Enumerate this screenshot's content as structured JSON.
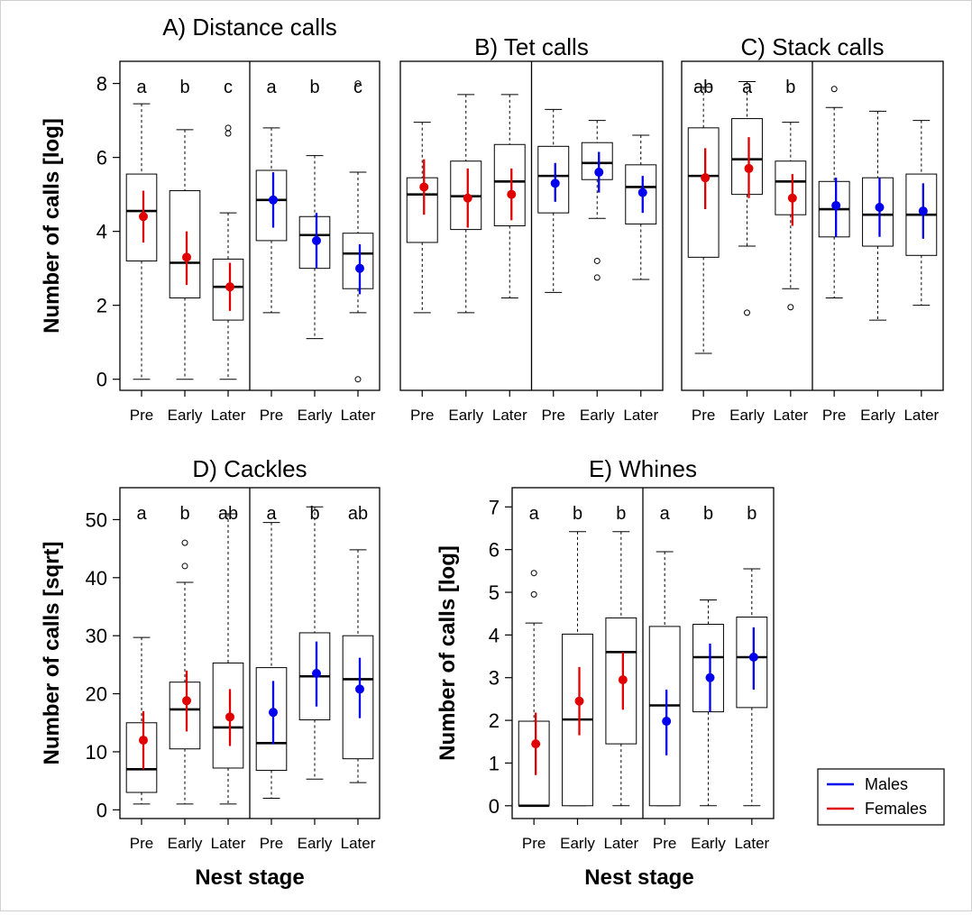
{
  "figure": {
    "xlabel": "Nest stage",
    "legend": {
      "position": "bottom-right"
    }
  },
  "colors": {
    "male": "#0000ee",
    "female": "#e00000",
    "axis": "#000000",
    "whisker": "#000000"
  },
  "chart_data": [
    {
      "id": "A",
      "type": "box",
      "title": "A) Distance calls",
      "ylabel": "Number of calls [log]",
      "ylim": [
        -0.3,
        8.6
      ],
      "yticks": [
        0,
        2,
        4,
        6,
        8
      ],
      "categories": [
        "Pre",
        "Early",
        "Later",
        "Pre",
        "Early",
        "Later"
      ],
      "groups": [
        {
          "stage": "Pre",
          "sex": "female",
          "whislo": 0,
          "q1": 3.2,
          "med": 4.55,
          "q3": 5.55,
          "whishi": 7.45,
          "mean": 4.4,
          "ci": [
            3.7,
            5.1
          ],
          "outliers": [],
          "letter": "a"
        },
        {
          "stage": "Early",
          "sex": "female",
          "whislo": 0,
          "q1": 2.2,
          "med": 3.15,
          "q3": 5.1,
          "whishi": 6.75,
          "mean": 3.3,
          "ci": [
            2.55,
            4.0
          ],
          "outliers": [],
          "letter": "b"
        },
        {
          "stage": "Later",
          "sex": "female",
          "whislo": 0,
          "q1": 1.6,
          "med": 2.5,
          "q3": 3.25,
          "whishi": 4.5,
          "mean": 2.5,
          "ci": [
            1.85,
            3.15
          ],
          "outliers": [
            6.65,
            6.8
          ],
          "letter": "c"
        },
        {
          "stage": "Pre",
          "sex": "male",
          "whislo": 1.8,
          "q1": 3.75,
          "med": 4.85,
          "q3": 5.65,
          "whishi": 6.8,
          "mean": 4.85,
          "ci": [
            4.1,
            5.6
          ],
          "outliers": [],
          "letter": "a"
        },
        {
          "stage": "Early",
          "sex": "male",
          "whislo": 1.1,
          "q1": 3.0,
          "med": 3.9,
          "q3": 4.4,
          "whishi": 6.05,
          "mean": 3.75,
          "ci": [
            3.0,
            4.5
          ],
          "outliers": [],
          "letter": "b"
        },
        {
          "stage": "Later",
          "sex": "male",
          "whislo": 1.8,
          "q1": 2.45,
          "med": 3.4,
          "q3": 3.95,
          "whishi": 5.6,
          "mean": 3.0,
          "ci": [
            2.3,
            3.65
          ],
          "outliers": [
            0,
            8.0
          ],
          "letter": "c"
        }
      ]
    },
    {
      "id": "B",
      "type": "box",
      "title": "B) Tet calls",
      "ylim": [
        -0.3,
        8.6
      ],
      "categories": [
        "Pre",
        "Early",
        "Later",
        "Pre",
        "Early",
        "Later"
      ],
      "groups": [
        {
          "stage": "Pre",
          "sex": "female",
          "whislo": 1.8,
          "q1": 3.7,
          "med": 5.0,
          "q3": 5.45,
          "whishi": 6.95,
          "mean": 5.2,
          "ci": [
            4.45,
            5.95
          ],
          "outliers": []
        },
        {
          "stage": "Early",
          "sex": "female",
          "whislo": 1.8,
          "q1": 4.05,
          "med": 4.95,
          "q3": 5.9,
          "whishi": 7.7,
          "mean": 4.9,
          "ci": [
            4.1,
            5.7
          ],
          "outliers": []
        },
        {
          "stage": "Later",
          "sex": "female",
          "whislo": 2.2,
          "q1": 4.15,
          "med": 5.35,
          "q3": 6.35,
          "whishi": 7.7,
          "mean": 5.0,
          "ci": [
            4.3,
            5.7
          ],
          "outliers": []
        },
        {
          "stage": "Pre",
          "sex": "male",
          "whislo": 2.35,
          "q1": 4.5,
          "med": 5.5,
          "q3": 6.3,
          "whishi": 7.3,
          "mean": 5.3,
          "ci": [
            4.8,
            5.85
          ],
          "outliers": []
        },
        {
          "stage": "Early",
          "sex": "male",
          "whislo": 4.35,
          "q1": 5.4,
          "med": 5.85,
          "q3": 6.4,
          "whishi": 7.0,
          "mean": 5.6,
          "ci": [
            5.05,
            6.15
          ],
          "outliers": [
            2.75,
            3.2
          ]
        },
        {
          "stage": "Later",
          "sex": "male",
          "whislo": 2.7,
          "q1": 4.2,
          "med": 5.2,
          "q3": 5.8,
          "whishi": 6.6,
          "mean": 5.05,
          "ci": [
            4.5,
            5.5
          ],
          "outliers": []
        }
      ]
    },
    {
      "id": "C",
      "type": "box",
      "title": "C) Stack calls",
      "ylim": [
        -0.3,
        8.6
      ],
      "categories": [
        "Pre",
        "Early",
        "Later",
        "Pre",
        "Early",
        "Later"
      ],
      "groups": [
        {
          "stage": "Pre",
          "sex": "female",
          "whislo": 0.7,
          "q1": 3.3,
          "med": 5.5,
          "q3": 6.8,
          "whishi": 7.9,
          "mean": 5.45,
          "ci": [
            4.6,
            6.25
          ],
          "outliers": [],
          "letter": "ab"
        },
        {
          "stage": "Early",
          "sex": "female",
          "whislo": 3.6,
          "q1": 5.0,
          "med": 5.95,
          "q3": 7.05,
          "whishi": 8.05,
          "mean": 5.7,
          "ci": [
            4.9,
            6.55
          ],
          "outliers": [
            1.8
          ],
          "letter": "a"
        },
        {
          "stage": "Later",
          "sex": "female",
          "whislo": 2.45,
          "q1": 4.45,
          "med": 5.35,
          "q3": 5.9,
          "whishi": 6.95,
          "mean": 4.9,
          "ci": [
            4.15,
            5.55
          ],
          "outliers": [
            1.95
          ],
          "letter": "b"
        },
        {
          "stage": "Pre",
          "sex": "male",
          "whislo": 2.2,
          "q1": 3.85,
          "med": 4.6,
          "q3": 5.35,
          "whishi": 7.35,
          "mean": 4.7,
          "ci": [
            3.85,
            5.45
          ],
          "outliers": [
            7.85
          ]
        },
        {
          "stage": "Early",
          "sex": "male",
          "whislo": 1.6,
          "q1": 3.6,
          "med": 4.45,
          "q3": 5.45,
          "whishi": 7.25,
          "mean": 4.65,
          "ci": [
            3.85,
            5.45
          ],
          "outliers": []
        },
        {
          "stage": "Later",
          "sex": "male",
          "whislo": 2.0,
          "q1": 3.35,
          "med": 4.45,
          "q3": 5.55,
          "whishi": 7.0,
          "mean": 4.55,
          "ci": [
            3.8,
            5.3
          ],
          "outliers": []
        }
      ]
    },
    {
      "id": "D",
      "type": "box",
      "title": "D) Cackles",
      "ylabel": "Number of calls [sqrt]",
      "ylim": [
        -1.5,
        55.5
      ],
      "yticks": [
        0,
        10,
        20,
        30,
        40,
        50
      ],
      "categories": [
        "Pre",
        "Early",
        "Later",
        "Pre",
        "Early",
        "Later"
      ],
      "groups": [
        {
          "stage": "Pre",
          "sex": "female",
          "whislo": 1,
          "q1": 3,
          "med": 7,
          "q3": 15,
          "whishi": 29.7,
          "mean": 12,
          "ci": [
            7,
            17
          ],
          "outliers": [],
          "letter": "a"
        },
        {
          "stage": "Early",
          "sex": "female",
          "whislo": 1,
          "q1": 10.5,
          "med": 17.3,
          "q3": 22,
          "whishi": 39.2,
          "mean": 18.8,
          "ci": [
            13.5,
            24
          ],
          "outliers": [
            42,
            46
          ],
          "letter": "b"
        },
        {
          "stage": "Later",
          "sex": "female",
          "whislo": 1,
          "q1": 7.2,
          "med": 14.2,
          "q3": 25.3,
          "whishi": 51,
          "mean": 16,
          "ci": [
            11,
            20.8
          ],
          "outliers": [],
          "letter": "ab"
        },
        {
          "stage": "Pre",
          "sex": "male",
          "whislo": 2,
          "q1": 6.8,
          "med": 11.5,
          "q3": 24.5,
          "whishi": 49.5,
          "mean": 16.8,
          "ci": [
            11.3,
            22.2
          ],
          "outliers": [],
          "letter": "a"
        },
        {
          "stage": "Early",
          "sex": "male",
          "whislo": 5.3,
          "q1": 15.5,
          "med": 23,
          "q3": 30.5,
          "whishi": 52.2,
          "mean": 23.5,
          "ci": [
            17.8,
            29
          ],
          "outliers": [],
          "letter": "b"
        },
        {
          "stage": "Later",
          "sex": "male",
          "whislo": 4.7,
          "q1": 8.8,
          "med": 22.5,
          "q3": 30,
          "whishi": 44.8,
          "mean": 20.8,
          "ci": [
            15.8,
            26.2
          ],
          "outliers": [],
          "letter": "ab"
        }
      ]
    },
    {
      "id": "E",
      "type": "box",
      "title": "E) Whines",
      "ylabel": "Number of calls [log]",
      "ylim": [
        -0.3,
        7.45
      ],
      "yticks": [
        0,
        1,
        2,
        3,
        4,
        5,
        6,
        7
      ],
      "categories": [
        "Pre",
        "Early",
        "Later",
        "Pre",
        "Early",
        "Later"
      ],
      "groups": [
        {
          "stage": "Pre",
          "sex": "female",
          "whislo": 0,
          "q1": 0,
          "med": 0,
          "q3": 1.98,
          "whishi": 4.28,
          "mean": 1.45,
          "ci": [
            0.72,
            2.18
          ],
          "outliers": [
            4.95,
            5.45
          ],
          "letter": "a"
        },
        {
          "stage": "Early",
          "sex": "female",
          "whislo": 0,
          "q1": 0,
          "med": 2.02,
          "q3": 4.02,
          "whishi": 6.42,
          "mean": 2.45,
          "ci": [
            1.65,
            3.25
          ],
          "outliers": [],
          "letter": "b"
        },
        {
          "stage": "Later",
          "sex": "female",
          "whislo": 0,
          "q1": 1.45,
          "med": 3.6,
          "q3": 4.4,
          "whishi": 6.42,
          "mean": 2.95,
          "ci": [
            2.25,
            3.6
          ],
          "outliers": [],
          "letter": "b"
        },
        {
          "stage": "Pre",
          "sex": "male",
          "whislo": 0,
          "q1": 0,
          "med": 2.35,
          "q3": 4.2,
          "whishi": 5.95,
          "mean": 1.98,
          "ci": [
            1.18,
            2.72
          ],
          "outliers": [],
          "letter": "a"
        },
        {
          "stage": "Early",
          "sex": "male",
          "whislo": 0,
          "q1": 2.2,
          "med": 3.48,
          "q3": 4.25,
          "whishi": 4.82,
          "mean": 3.0,
          "ci": [
            2.2,
            3.8
          ],
          "outliers": [],
          "letter": "b"
        },
        {
          "stage": "Later",
          "sex": "male",
          "whislo": 0,
          "q1": 2.3,
          "med": 3.48,
          "q3": 4.42,
          "whishi": 5.55,
          "mean": 3.48,
          "ci": [
            2.72,
            4.18
          ],
          "outliers": [],
          "letter": "b"
        }
      ]
    }
  ],
  "legend_items": [
    {
      "label": "Males",
      "sex": "male"
    },
    {
      "label": "Females",
      "sex": "female"
    }
  ]
}
